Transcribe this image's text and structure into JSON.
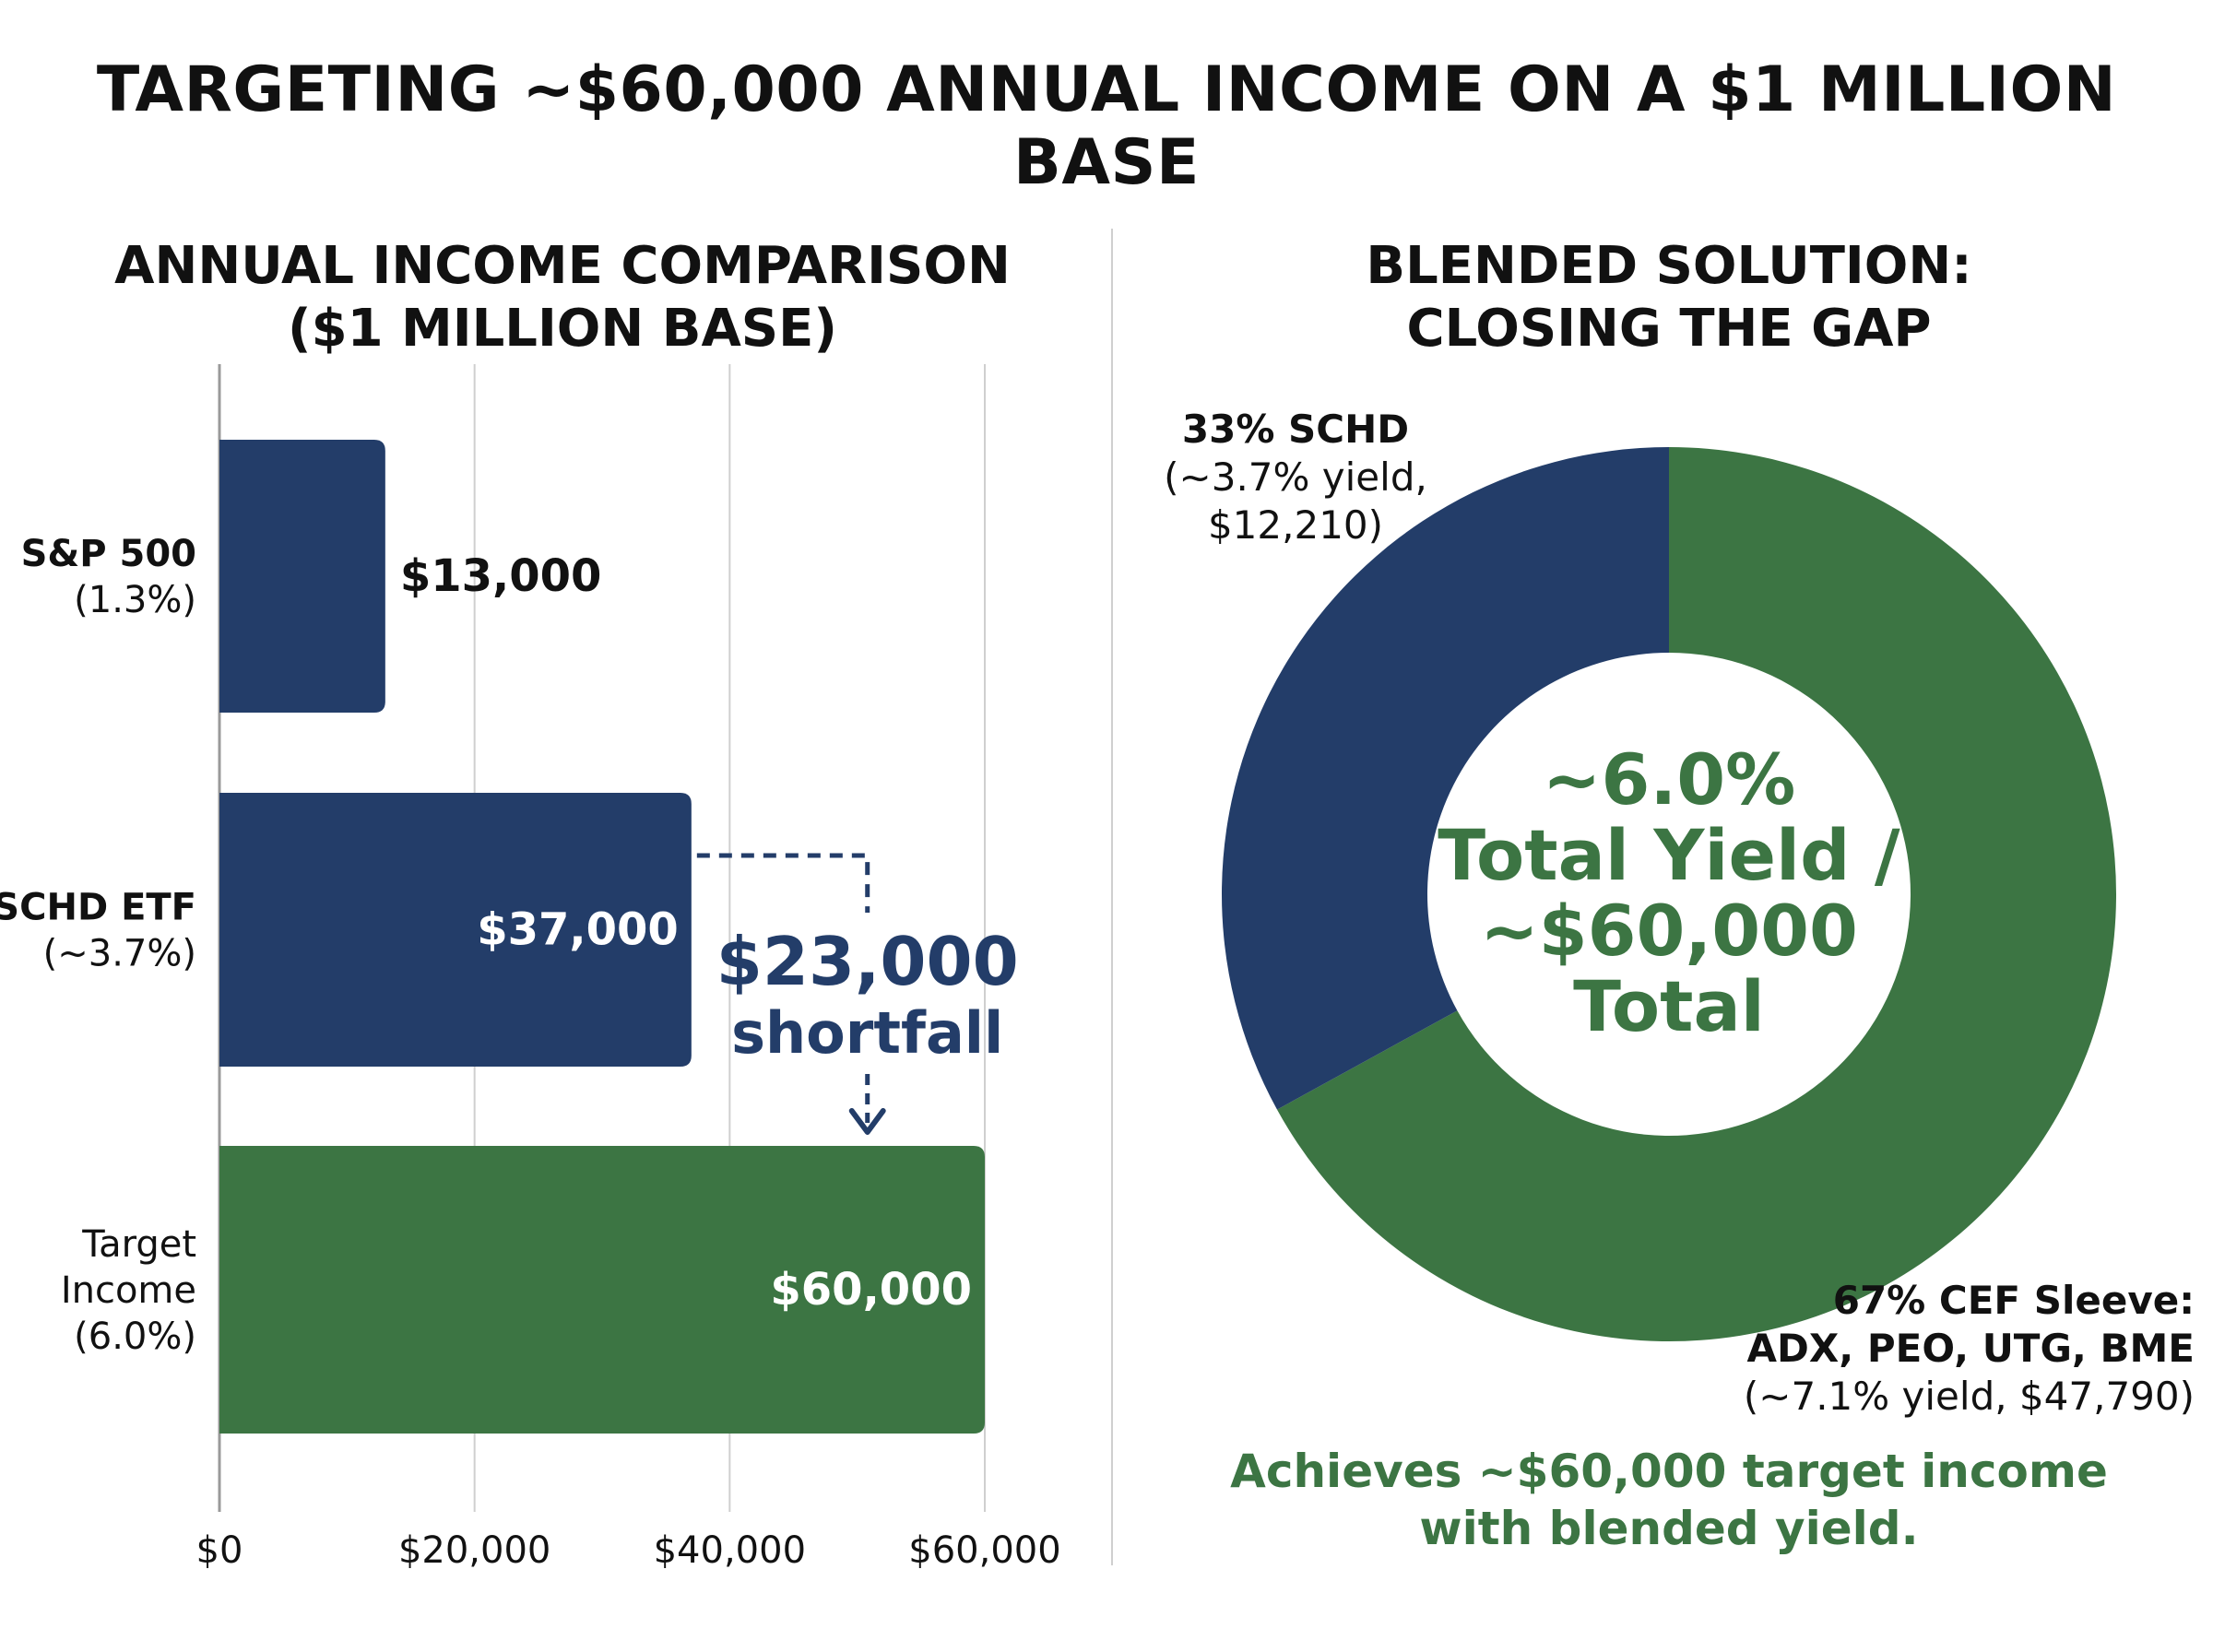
{
  "title": "TARGETING ~$60,000 ANNUAL INCOME ON A $1 MILLION BASE",
  "colors": {
    "navy": "#233d69",
    "green": "#3c7543",
    "grid": "#cfcfcf",
    "text": "#111111"
  },
  "chart_data": [
    {
      "type": "bar",
      "orientation": "horizontal",
      "title": "ANNUAL INCOME COMPARISON ($1 MILLION BASE)",
      "title_lines": [
        "ANNUAL INCOME COMPARISON",
        "($1 MILLION BASE)"
      ],
      "xlim": [
        0,
        60000
      ],
      "x_ticks": [
        0,
        20000,
        40000,
        60000
      ],
      "x_tick_labels": [
        "$0",
        "$20,000",
        "$40,000",
        "$60,000"
      ],
      "grid": true,
      "categories": [
        {
          "label_lines": [
            "S&P 500",
            "(1.3%)"
          ],
          "bold_first": true,
          "value": 13000,
          "value_label": "$13,000",
          "label_inside": false,
          "color": "#233d69"
        },
        {
          "label_lines": [
            "SCHD ETF",
            "(~3.7%)"
          ],
          "bold_first": true,
          "value": 37000,
          "value_label": "$37,000",
          "label_inside": true,
          "color": "#233d69"
        },
        {
          "label_lines": [
            "Target",
            "Income",
            "(6.0%)"
          ],
          "bold_first": false,
          "value": 60000,
          "value_label": "$60,000",
          "label_inside": true,
          "color": "#3c7543"
        }
      ],
      "annotation": {
        "value": 23000,
        "lines": [
          "$23,000",
          "shortfall"
        ]
      }
    },
    {
      "type": "pie",
      "style": "donut",
      "title": "BLENDED SOLUTION: CLOSING THE GAP",
      "title_lines": [
        "BLENDED SOLUTION:",
        "CLOSING THE GAP"
      ],
      "slices": [
        {
          "percent": 33,
          "color": "#233d69",
          "label_lines": [
            "33% SCHD",
            "(~3.7% yield,",
            "$12,210)"
          ]
        },
        {
          "percent": 67,
          "color": "#3c7543",
          "label_lines": [
            "67% CEF Sleeve:",
            "ADX, PEO, UTG, BME",
            "(~7.1% yield, $47,790)"
          ]
        }
      ],
      "center_lines": [
        "~6.0%",
        "Total Yield /",
        "~$60,000",
        "Total"
      ],
      "note_lines": [
        "Achieves ~$60,000 target income",
        "with blended yield."
      ]
    }
  ]
}
